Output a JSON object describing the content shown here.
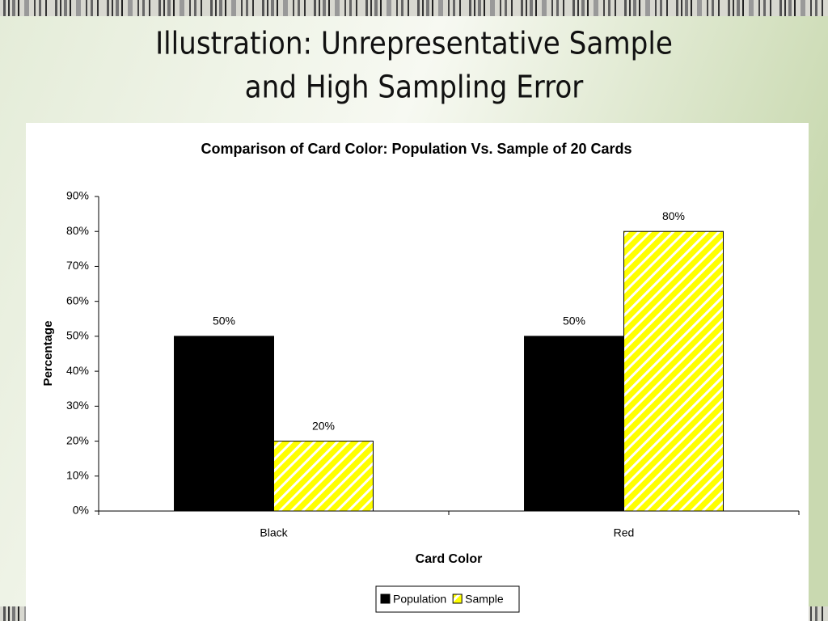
{
  "slide_title": [
    "Illustration: Unrepresentative Sample",
    "and High Sampling Error"
  ],
  "chart_data": {
    "type": "bar",
    "title": "Comparison of Card Color: Population Vs. Sample of 20 Cards",
    "x_label": "Card Color",
    "y_label": "Percentage",
    "categories": [
      "Black",
      "Red"
    ],
    "series": [
      {
        "name": "Population",
        "color": "#000000",
        "values": [
          50,
          50
        ],
        "value_labels": [
          "50%",
          "50%"
        ]
      },
      {
        "name": "Sample",
        "color": "#ffff00",
        "values": [
          20,
          80
        ],
        "value_labels": [
          "20%",
          "80%"
        ]
      }
    ],
    "ylim": [
      0,
      90
    ],
    "yticks": [
      {
        "value": 0,
        "label": "0%"
      },
      {
        "value": 10,
        "label": "10%"
      },
      {
        "value": 20,
        "label": "20%"
      },
      {
        "value": 30,
        "label": "30%"
      },
      {
        "value": 40,
        "label": "40%"
      },
      {
        "value": 50,
        "label": "50%"
      },
      {
        "value": 60,
        "label": "60%"
      },
      {
        "value": 70,
        "label": "70%"
      },
      {
        "value": 80,
        "label": "80%"
      },
      {
        "value": 90,
        "label": "90%"
      }
    ],
    "grid": false,
    "legend": "bottom"
  }
}
